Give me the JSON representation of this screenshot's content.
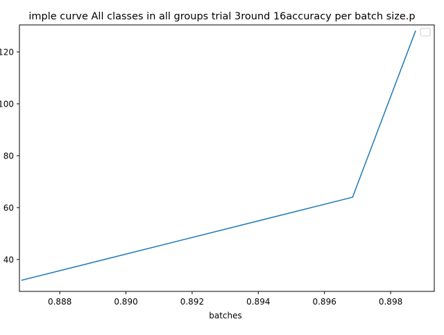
{
  "chart_data": {
    "type": "line",
    "title": "imple curve All classes in all groups trial 3round 16accuracy per batch size.p",
    "xlabel": "batches",
    "ylabel": "",
    "xlim": [
      0.88678,
      0.89932
    ],
    "ylim": [
      27.7,
      130.4
    ],
    "xticks": [
      0.888,
      0.89,
      0.892,
      0.894,
      0.896,
      0.898
    ],
    "xtick_labels": [
      "0.888",
      "0.890",
      "0.892",
      "0.894",
      "0.896",
      "0.898"
    ],
    "yticks": [
      40,
      60,
      80,
      100,
      120
    ],
    "ytick_labels": [
      "40",
      "60",
      "80",
      "100",
      "120"
    ],
    "grid": false,
    "legend": {
      "placement": "top-right",
      "entries": []
    },
    "series": [
      {
        "color": "#1f77b4",
        "x": [
          0.88685,
          0.89685,
          0.89875
        ],
        "y": [
          32,
          64,
          128
        ]
      }
    ]
  }
}
